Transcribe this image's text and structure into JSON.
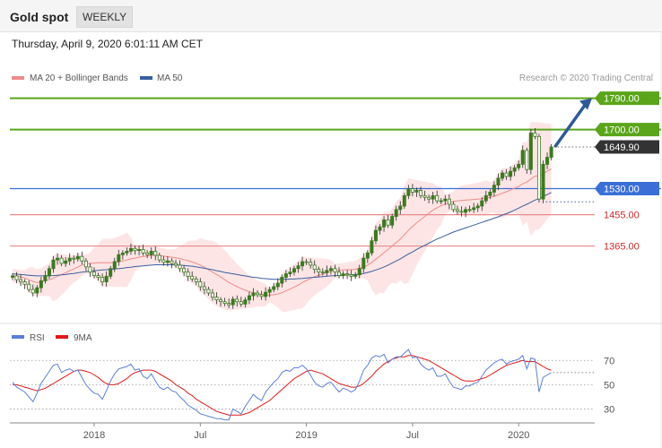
{
  "header": {
    "title": "Gold spot",
    "period": "WEEKLY",
    "datetime": "Thursday, April 9, 2020 6:01:11 AM CET"
  },
  "colors": {
    "ma20": "#f08a8a",
    "ma50": "#3a5fa0",
    "band_fill": "#fde0e0",
    "candle": "#3a7a1e",
    "resistance": "#5aa51a",
    "support_blue": "#3a6fd8",
    "support_red": "#e88a8a",
    "current": "#333333",
    "rsi": "#5b7fd8",
    "rsi_ma": "#e01818",
    "arrow": "#2e5a9c"
  },
  "chart_data": [
    {
      "type": "candlestick",
      "title": "Gold spot",
      "legend": [
        {
          "name": "MA 20 + Bollinger Bands",
          "color": "#f08a8a"
        },
        {
          "name": "MA 50",
          "color": "#3a5fa0"
        }
      ],
      "legend_placement": "top-left",
      "credit": "Research © 2020 Trading Central",
      "x_ticks": [
        "2018",
        "Jul",
        "2019",
        "Jul",
        "2020"
      ],
      "x_tick_weeks": [
        20,
        46,
        72,
        98,
        124
      ],
      "ylim": [
        1150,
        1820
      ],
      "levels": [
        {
          "label": "1790.00",
          "value": 1790,
          "kind": "resistance"
        },
        {
          "label": "1700.00",
          "value": 1700,
          "kind": "resistance"
        },
        {
          "label": "1649.90",
          "value": 1649.9,
          "kind": "current"
        },
        {
          "label": "1530.00",
          "value": 1530,
          "kind": "pivot"
        },
        {
          "label": "1455.00",
          "value": 1455,
          "kind": "support"
        },
        {
          "label": "1365.00",
          "value": 1365,
          "kind": "support"
        }
      ],
      "arrow_target": 1790,
      "closes": [
        1279,
        1268,
        1262,
        1255,
        1240,
        1230,
        1245,
        1265,
        1280,
        1300,
        1325,
        1330,
        1315,
        1322,
        1330,
        1328,
        1335,
        1322,
        1305,
        1290,
        1280,
        1275,
        1262,
        1278,
        1300,
        1320,
        1340,
        1345,
        1350,
        1358,
        1352,
        1355,
        1345,
        1340,
        1350,
        1338,
        1325,
        1318,
        1322,
        1315,
        1310,
        1300,
        1290,
        1278,
        1270,
        1262,
        1248,
        1240,
        1230,
        1218,
        1210,
        1205,
        1200,
        1196,
        1212,
        1205,
        1198,
        1210,
        1222,
        1230,
        1225,
        1220,
        1232,
        1240,
        1248,
        1258,
        1275,
        1285,
        1290,
        1300,
        1308,
        1320,
        1318,
        1310,
        1298,
        1290,
        1288,
        1295,
        1300,
        1290,
        1280,
        1285,
        1282,
        1278,
        1282,
        1300,
        1330,
        1345,
        1380,
        1410,
        1420,
        1440,
        1425,
        1450,
        1470,
        1480,
        1510,
        1530,
        1520,
        1525,
        1510,
        1505,
        1500,
        1510,
        1495,
        1495,
        1500,
        1485,
        1470,
        1465,
        1462,
        1470,
        1470,
        1475,
        1480,
        1495,
        1510,
        1520,
        1540,
        1560,
        1575,
        1565,
        1580,
        1590,
        1600,
        1640,
        1585,
        1690,
        1680,
        1500,
        1600,
        1620,
        1649.9
      ],
      "ma20": [
        1280,
        1278,
        1276,
        1273,
        1268,
        1263,
        1260,
        1262,
        1265,
        1268,
        1272,
        1278,
        1283,
        1288,
        1294,
        1299,
        1305,
        1310,
        1313,
        1315,
        1316,
        1317,
        1317,
        1317,
        1317,
        1318,
        1320,
        1322,
        1325,
        1328,
        1330,
        1333,
        1335,
        1336,
        1338,
        1338,
        1337,
        1336,
        1334,
        1333,
        1331,
        1329,
        1326,
        1323,
        1319,
        1315,
        1310,
        1304,
        1297,
        1290,
        1283,
        1276,
        1268,
        1260,
        1254,
        1248,
        1243,
        1238,
        1234,
        1231,
        1228,
        1226,
        1224,
        1224,
        1225,
        1227,
        1231,
        1236,
        1241,
        1247,
        1253,
        1260,
        1266,
        1272,
        1277,
        1281,
        1284,
        1288,
        1292,
        1294,
        1295,
        1296,
        1297,
        1297,
        1298,
        1301,
        1305,
        1310,
        1318,
        1327,
        1336,
        1346,
        1355,
        1365,
        1375,
        1385,
        1397,
        1410,
        1421,
        1432,
        1441,
        1450,
        1459,
        1468,
        1475,
        1481,
        1486,
        1490,
        1493,
        1495,
        1496,
        1497,
        1498,
        1499,
        1500,
        1501,
        1503,
        1505,
        1508,
        1512,
        1517,
        1521,
        1526,
        1531,
        1536,
        1544,
        1549,
        1558,
        1566,
        1567,
        1573,
        1580,
        1587
      ],
      "ma50": [
        1285,
        1284,
        1283,
        1282,
        1281,
        1280,
        1279,
        1279,
        1279,
        1279,
        1280,
        1281,
        1282,
        1283,
        1285,
        1286,
        1288,
        1290,
        1291,
        1293,
        1294,
        1295,
        1296,
        1297,
        1298,
        1299,
        1300,
        1301,
        1303,
        1304,
        1306,
        1307,
        1308,
        1309,
        1310,
        1311,
        1311,
        1311,
        1311,
        1311,
        1311,
        1310,
        1309,
        1308,
        1307,
        1305,
        1303,
        1301,
        1299,
        1297,
        1294,
        1292,
        1289,
        1287,
        1285,
        1283,
        1281,
        1279,
        1277,
        1275,
        1274,
        1272,
        1271,
        1270,
        1269,
        1269,
        1269,
        1269,
        1270,
        1270,
        1271,
        1272,
        1273,
        1274,
        1275,
        1276,
        1277,
        1278,
        1279,
        1280,
        1280,
        1281,
        1282,
        1282,
        1283,
        1284,
        1286,
        1289,
        1292,
        1296,
        1300,
        1305,
        1310,
        1316,
        1322,
        1328,
        1335,
        1342,
        1348,
        1355,
        1361,
        1367,
        1373,
        1379,
        1385,
        1390,
        1395,
        1400,
        1405,
        1409,
        1413,
        1417,
        1421,
        1425,
        1429,
        1433,
        1437,
        1441,
        1445,
        1449,
        1454,
        1458,
        1463,
        1468,
        1474,
        1480,
        1485,
        1491,
        1497,
        1501,
        1507,
        1513,
        1519
      ]
    },
    {
      "type": "line",
      "title": "",
      "legend": [
        {
          "name": "RSI",
          "color": "#5b7fd8"
        },
        {
          "name": "9MA",
          "color": "#e01818"
        }
      ],
      "legend_placement": "top-left",
      "y_ticks": [
        "70",
        "50",
        "30"
      ],
      "y_tick_values": [
        70,
        50,
        30
      ],
      "ylim": [
        20,
        82
      ],
      "rsi": [
        52,
        48,
        46,
        44,
        40,
        36,
        43,
        51,
        56,
        61,
        66,
        67,
        60,
        62,
        63,
        61,
        62,
        56,
        50,
        46,
        43,
        42,
        38,
        45,
        53,
        59,
        63,
        64,
        65,
        67,
        62,
        63,
        57,
        55,
        59,
        53,
        48,
        46,
        48,
        45,
        44,
        40,
        37,
        33,
        31,
        29,
        26,
        25,
        24,
        23,
        22,
        22,
        21,
        21,
        30,
        28,
        26,
        32,
        37,
        42,
        39,
        37,
        44,
        48,
        52,
        55,
        60,
        62,
        61,
        64,
        64,
        66,
        63,
        58,
        52,
        49,
        48,
        51,
        52,
        48,
        44,
        47,
        46,
        44,
        46,
        53,
        62,
        66,
        72,
        74,
        73,
        75,
        68,
        71,
        73,
        73,
        76,
        79,
        72,
        73,
        67,
        64,
        62,
        64,
        57,
        57,
        59,
        53,
        48,
        47,
        46,
        49,
        49,
        51,
        52,
        57,
        62,
        65,
        68,
        70,
        71,
        67,
        69,
        70,
        71,
        74,
        63,
        72,
        71,
        44,
        56,
        58,
        60
      ],
      "ma9": [
        50,
        50,
        49,
        48,
        47,
        46,
        45,
        46,
        47,
        49,
        51,
        53,
        55,
        57,
        59,
        61,
        62,
        62,
        61,
        60,
        58,
        56,
        53,
        51,
        50,
        50,
        51,
        53,
        55,
        58,
        60,
        61,
        62,
        62,
        62,
        61,
        59,
        57,
        55,
        53,
        50,
        48,
        46,
        43,
        41,
        38,
        36,
        34,
        32,
        30,
        28,
        27,
        26,
        25,
        25,
        25,
        25,
        26,
        27,
        29,
        31,
        33,
        35,
        37,
        40,
        43,
        46,
        49,
        52,
        55,
        57,
        59,
        61,
        62,
        61,
        60,
        59,
        57,
        55,
        53,
        51,
        50,
        49,
        48,
        48,
        49,
        51,
        54,
        57,
        61,
        64,
        67,
        69,
        71,
        72,
        73,
        73,
        74,
        74,
        73,
        72,
        71,
        70,
        68,
        66,
        64,
        62,
        60,
        58,
        56,
        54,
        53,
        53,
        53,
        54,
        55,
        56,
        58,
        60,
        62,
        64,
        66,
        67,
        68,
        69,
        70,
        69,
        69,
        69,
        67,
        65,
        63,
        62
      ],
      "x_ticks": [
        "2018",
        "Jul",
        "2019",
        "Jul",
        "2020"
      ],
      "x_tick_weeks": [
        20,
        46,
        72,
        98,
        124
      ]
    }
  ]
}
